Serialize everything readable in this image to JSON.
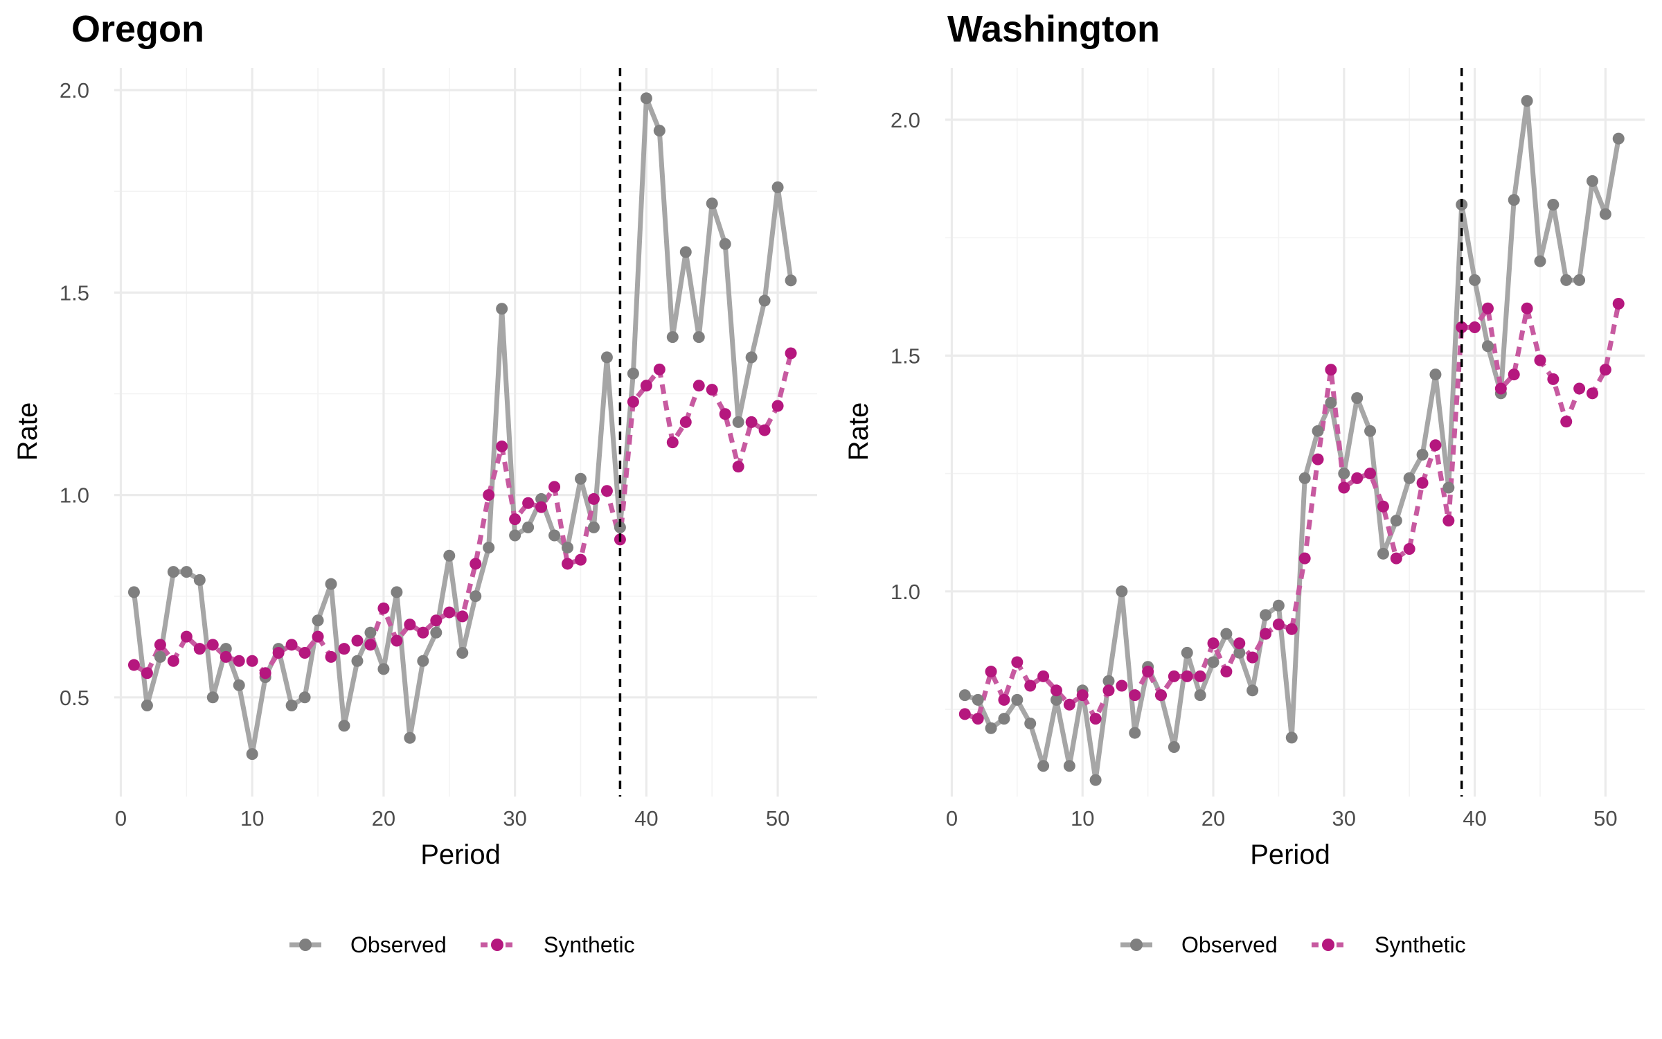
{
  "colors": {
    "observed_line": "#a6a6a6",
    "observed_point": "#7f7f7f",
    "synthetic_line": "#c75aa0",
    "synthetic_point": "#b5177e",
    "treatment_line": "#000000"
  },
  "chart_data": [
    {
      "type": "line",
      "title": "Oregon",
      "xlabel": "Period",
      "ylabel": "Rate",
      "xlim": [
        -0.5,
        53
      ],
      "ylim": [
        0.255,
        2.055
      ],
      "x_ticks": [
        0,
        10,
        20,
        30,
        40,
        50
      ],
      "x_tick_labels": [
        "0",
        "10",
        "20",
        "30",
        "40",
        "50"
      ],
      "y_ticks": [
        0.5,
        1.0,
        1.5,
        2.0
      ],
      "y_tick_labels": [
        "0.5",
        "1.0",
        "1.5",
        "2.0"
      ],
      "treatment_period": 38,
      "legend_position": "bottom",
      "x": [
        1,
        2,
        3,
        4,
        5,
        6,
        7,
        8,
        9,
        10,
        11,
        12,
        13,
        14,
        15,
        16,
        17,
        18,
        19,
        20,
        21,
        22,
        23,
        24,
        25,
        26,
        27,
        28,
        29,
        30,
        31,
        32,
        33,
        34,
        35,
        36,
        37,
        38,
        39,
        40,
        41,
        42,
        43,
        44,
        45,
        46,
        47,
        48,
        49,
        50,
        51
      ],
      "series": [
        {
          "name": "Observed",
          "style": "solid",
          "values": [
            0.76,
            0.48,
            0.6,
            0.81,
            0.81,
            0.79,
            0.5,
            0.62,
            0.53,
            0.36,
            0.55,
            0.62,
            0.48,
            0.5,
            0.69,
            0.78,
            0.43,
            0.59,
            0.66,
            0.57,
            0.76,
            0.4,
            0.59,
            0.66,
            0.85,
            0.61,
            0.75,
            0.87,
            1.46,
            0.9,
            0.92,
            0.99,
            0.9,
            0.87,
            1.04,
            0.92,
            1.34,
            0.92,
            1.3,
            1.98,
            1.9,
            1.39,
            1.6,
            1.39,
            1.72,
            1.62,
            1.18,
            1.34,
            1.48,
            1.76,
            1.53
          ]
        },
        {
          "name": "Synthetic",
          "style": "dashed",
          "values": [
            0.58,
            0.56,
            0.63,
            0.59,
            0.65,
            0.62,
            0.63,
            0.6,
            0.59,
            0.59,
            0.56,
            0.61,
            0.63,
            0.61,
            0.65,
            0.6,
            0.62,
            0.64,
            0.63,
            0.72,
            0.64,
            0.68,
            0.66,
            0.69,
            0.71,
            0.7,
            0.83,
            1.0,
            1.12,
            0.94,
            0.98,
            0.97,
            1.02,
            0.83,
            0.84,
            0.99,
            1.01,
            0.89,
            1.23,
            1.27,
            1.31,
            1.13,
            1.18,
            1.27,
            1.26,
            1.2,
            1.07,
            1.18,
            1.16,
            1.22,
            1.35
          ]
        }
      ]
    },
    {
      "type": "line",
      "title": "Washington",
      "xlabel": "Period",
      "ylabel": "Rate",
      "xlim": [
        -0.5,
        53
      ],
      "ylim": [
        0.565,
        2.11
      ],
      "x_ticks": [
        0,
        10,
        20,
        30,
        40,
        50
      ],
      "x_tick_labels": [
        "0",
        "10",
        "20",
        "30",
        "40",
        "50"
      ],
      "y_ticks": [
        1.0,
        1.5,
        2.0
      ],
      "y_tick_labels": [
        "1.0",
        "1.5",
        "2.0"
      ],
      "treatment_period": 39,
      "legend_position": "bottom",
      "x": [
        1,
        2,
        3,
        4,
        5,
        6,
        7,
        8,
        9,
        10,
        11,
        12,
        13,
        14,
        15,
        16,
        17,
        18,
        19,
        20,
        21,
        22,
        23,
        24,
        25,
        26,
        27,
        28,
        29,
        30,
        31,
        32,
        33,
        34,
        35,
        36,
        37,
        38,
        39,
        40,
        41,
        42,
        43,
        44,
        45,
        46,
        47,
        48,
        49,
        50,
        51
      ],
      "series": [
        {
          "name": "Observed",
          "style": "solid",
          "values": [
            0.78,
            0.77,
            0.71,
            0.73,
            0.77,
            0.72,
            0.63,
            0.77,
            0.63,
            0.79,
            0.6,
            0.81,
            1.0,
            0.7,
            0.84,
            0.78,
            0.67,
            0.87,
            0.78,
            0.85,
            0.91,
            0.87,
            0.79,
            0.95,
            0.97,
            0.69,
            1.24,
            1.34,
            1.4,
            1.25,
            1.41,
            1.34,
            1.08,
            1.15,
            1.24,
            1.29,
            1.46,
            1.22,
            1.82,
            1.66,
            1.52,
            1.42,
            1.83,
            2.04,
            1.7,
            1.82,
            1.66,
            1.66,
            1.87,
            1.8,
            1.96
          ]
        },
        {
          "name": "Synthetic",
          "style": "dashed",
          "values": [
            0.74,
            0.73,
            0.83,
            0.77,
            0.85,
            0.8,
            0.82,
            0.79,
            0.76,
            0.78,
            0.73,
            0.79,
            0.8,
            0.78,
            0.83,
            0.78,
            0.82,
            0.82,
            0.82,
            0.89,
            0.83,
            0.89,
            0.86,
            0.91,
            0.93,
            0.92,
            1.07,
            1.28,
            1.47,
            1.22,
            1.24,
            1.25,
            1.18,
            1.07,
            1.09,
            1.23,
            1.31,
            1.15,
            1.56,
            1.56,
            1.6,
            1.43,
            1.46,
            1.6,
            1.49,
            1.45,
            1.36,
            1.43,
            1.42,
            1.47,
            1.61
          ]
        }
      ]
    }
  ]
}
